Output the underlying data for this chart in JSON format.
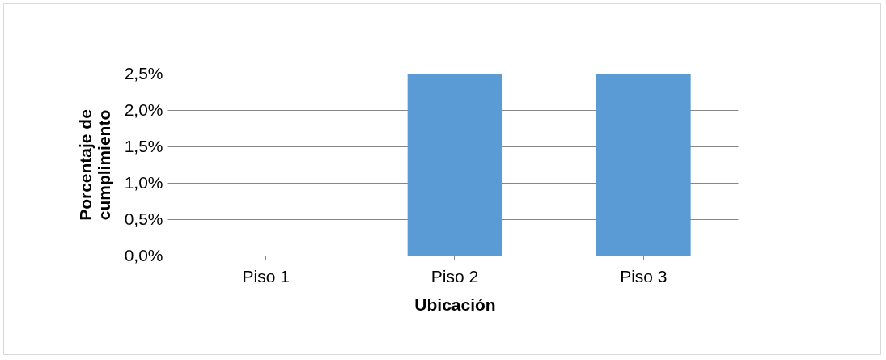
{
  "chart_data": {
    "type": "bar",
    "xlabel": "Ubicación",
    "ylabel": "Porcentaje de cumplimiento",
    "categories": [
      "Piso 1",
      "Piso 2",
      "Piso 3"
    ],
    "values": [
      0,
      2.5,
      2.5
    ],
    "color": "#5b9bd5",
    "ylim": [
      0,
      2.5
    ],
    "yticks": [
      {
        "value": 0,
        "label": "0,0%"
      },
      {
        "value": 0.5,
        "label": "0,5%"
      },
      {
        "value": 1,
        "label": "1,0%"
      },
      {
        "value": 1.5,
        "label": "1,5%"
      },
      {
        "value": 2,
        "label": "2,0%"
      },
      {
        "value": 2.5,
        "label": "2,5%"
      }
    ],
    "grid": "y"
  }
}
